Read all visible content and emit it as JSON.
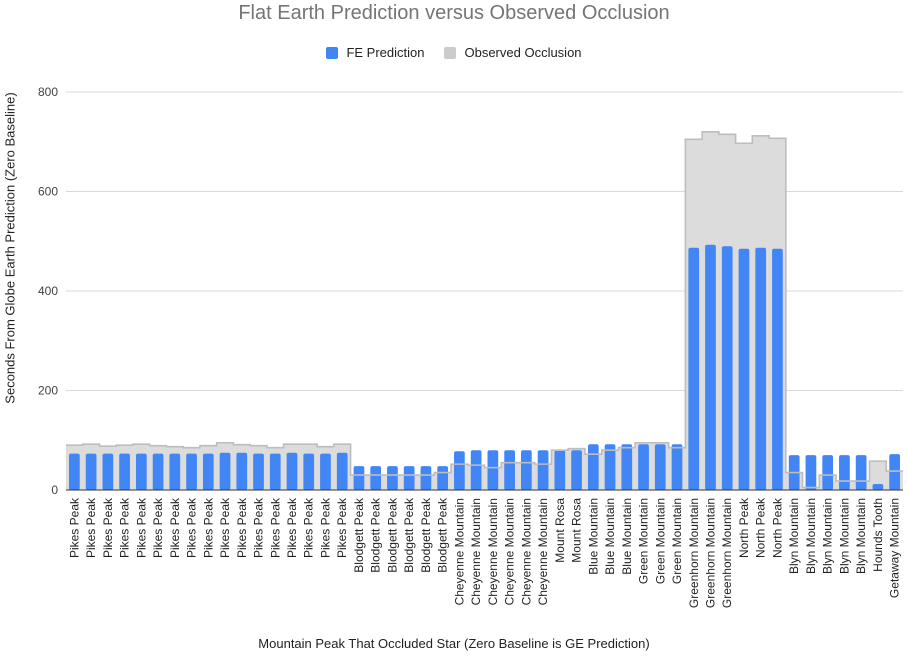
{
  "chart_data": {
    "type": "bar",
    "title": "Flat Earth Prediction versus Observed Occlusion",
    "xlabel": "Mountain Peak That Occluded Star (Zero Baseline is GE Prediction)",
    "ylabel": "Seconds From Globe Earth Prediction (Zero Baseline)",
    "ylim": [
      0,
      800
    ],
    "yticks": [
      "0",
      "200",
      "400",
      "600",
      "800"
    ],
    "grid": true,
    "legend_position": "top",
    "categories": [
      "Pikes Peak",
      "Pikes Peak",
      "Pikes Peak",
      "Pikes Peak",
      "Pikes Peak",
      "Pikes Peak",
      "Pikes Peak",
      "Pikes Peak",
      "Pikes Peak",
      "Pikes Peak",
      "Pikes Peak",
      "Pikes Peak",
      "Pikes Peak",
      "Pikes Peak",
      "Pikes Peak",
      "Pikes Peak",
      "Pikes Peak",
      "Blodgett Peak",
      "Blodgett Peak",
      "Blodgett Peak",
      "Blodgett Peak",
      "Blodgett Peak",
      "Blodgett Peak",
      "Cheyenne Mountain",
      "Cheyenne Mountain",
      "Cheyenne Mountain",
      "Cheyenne Mountain",
      "Cheyenne Mountain",
      "Cheyenne Mountain",
      "Mount Rosa",
      "Mount Rosa",
      "Blue Mountain",
      "Blue Mountain",
      "Blue Mountain",
      "Green Mountain",
      "Green Mountain",
      "Green Mountain",
      "Greenhorn Mountain",
      "Greenhorn Mountain",
      "Greenhorn Mountain",
      "North Peak",
      "North Peak",
      "North Peak",
      "Blyn Mountain",
      "Blyn Mountain",
      "Blyn Mountain",
      "Blyn Mountain",
      "Blyn Mountain",
      "Hounds Tooth",
      "Getaway Mountain"
    ],
    "series": [
      {
        "name": "FE Prediction",
        "color": "#4285f4",
        "values": [
          73,
          73,
          73,
          73,
          73,
          73,
          73,
          73,
          73,
          75,
          75,
          73,
          73,
          75,
          73,
          73,
          75,
          48,
          48,
          48,
          48,
          48,
          48,
          78,
          80,
          80,
          80,
          80,
          80,
          80,
          80,
          92,
          92,
          92,
          92,
          92,
          92,
          487,
          493,
          490,
          485,
          487,
          485,
          70,
          70,
          70,
          70,
          70,
          12,
          72
        ]
      },
      {
        "name": "Observed Occlusion",
        "color": "#cccccc",
        "values": [
          90,
          92,
          88,
          90,
          92,
          89,
          87,
          85,
          89,
          95,
          91,
          89,
          85,
          92,
          92,
          87,
          92,
          30,
          30,
          30,
          30,
          30,
          35,
          52,
          50,
          45,
          55,
          55,
          52,
          80,
          83,
          72,
          80,
          85,
          95,
          95,
          85,
          705,
          720,
          715,
          697,
          712,
          707,
          35,
          5,
          30,
          18,
          18,
          58,
          38
        ]
      }
    ]
  }
}
